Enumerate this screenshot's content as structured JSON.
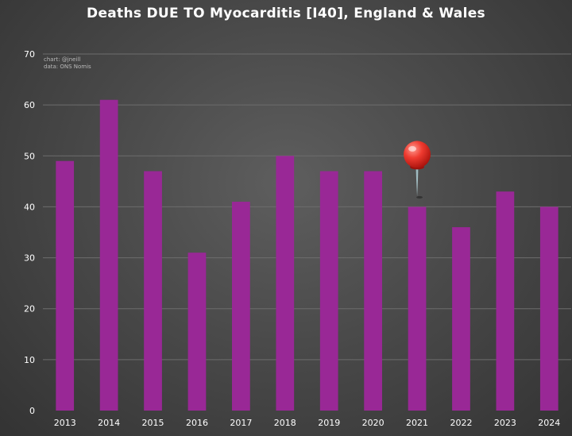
{
  "chart_data": {
    "type": "bar",
    "title": "Deaths DUE TO Myocarditis [I40], England & Wales",
    "credits": [
      "chart: @jneill",
      "data: ONS Nomis"
    ],
    "categories": [
      "2013",
      "2014",
      "2015",
      "2016",
      "2017",
      "2018",
      "2019",
      "2020",
      "2021",
      "2022",
      "2023",
      "2024"
    ],
    "values": [
      49,
      61,
      47,
      31,
      41,
      50,
      47,
      47,
      40,
      36,
      43,
      40
    ],
    "xlabel": "",
    "ylabel": "",
    "ylim": [
      0,
      70
    ],
    "yticks": [
      0,
      10,
      20,
      30,
      40,
      50,
      60,
      70
    ],
    "grid": true,
    "legend": "none",
    "annotation": {
      "type": "pushpin",
      "category": "2021"
    },
    "colors": {
      "bar": "#992896",
      "text": "#ffffff",
      "grid": "#6d6d6d",
      "credit": "#b9b9b9",
      "pin": "#e83a32"
    }
  }
}
